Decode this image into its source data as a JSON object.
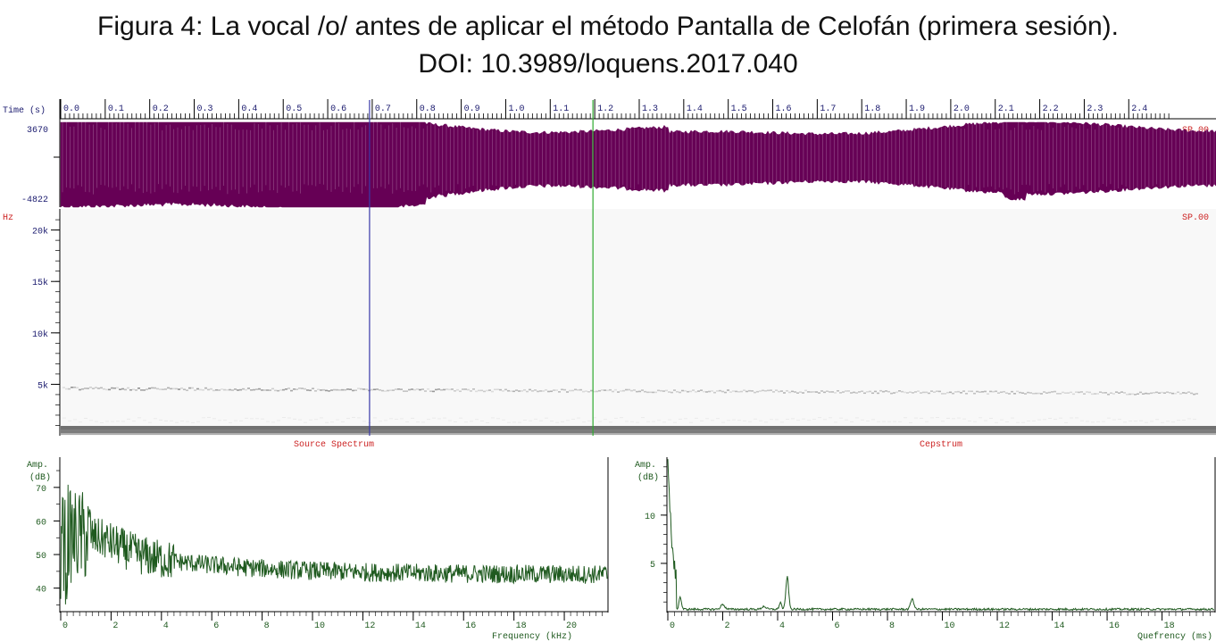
{
  "figure": {
    "title_line1": "Figura 4: La vocal /o/ antes de aplicar el método Pantalla de Celofán (primera sesión).",
    "title_line2": "DOI: 10.3989/loquens.2017.040"
  },
  "colors": {
    "waveform": "#660055",
    "spectrum": "#1f5a1f",
    "axis_label": "#1a1a6e",
    "channel_label": "#cc2222",
    "cursor_left": "#3a3aa8",
    "cursor_right": "#2eaa2e"
  },
  "time_axis": {
    "label": "Time (s)",
    "ticks": [
      "0.0",
      "0.1",
      "0.2",
      "0.3",
      "0.4",
      "0.5",
      "0.6",
      "0.7",
      "0.8",
      "0.9",
      "1.0",
      "1.1",
      "1.2",
      "1.3",
      "1.4",
      "1.5",
      "1.6",
      "1.7",
      "1.8",
      "1.9",
      "2.0",
      "2.1",
      "2.2",
      "2.3",
      "2.4"
    ],
    "max_s": 2.5
  },
  "waveform_panel": {
    "y_max_label": "3670",
    "y_min_label": "-4822",
    "channel": "SP.00"
  },
  "spectrogram_panel": {
    "unit": "Hz",
    "channel": "SP.00",
    "ticks": [
      "20k",
      "15k",
      "10k",
      "5k"
    ],
    "tick_values_hz": [
      20000,
      15000,
      10000,
      5000
    ],
    "max_hz": 22050
  },
  "cursors": {
    "left_time_s": 0.694,
    "right_time_s": 1.196
  },
  "source_spectrum": {
    "title": "Source Spectrum",
    "ylabel_line1": "Amp.",
    "ylabel_line2": "(dB)",
    "y_ticks": [
      "70",
      "60",
      "50",
      "40"
    ],
    "y_tick_values": [
      70,
      60,
      50,
      40
    ],
    "x_ticks": [
      "0",
      "2",
      "4",
      "6",
      "8",
      "10",
      "12",
      "14",
      "16",
      "18",
      "20"
    ],
    "xlabel": "Frequency (kHz)",
    "x_range_khz": [
      0,
      21.7
    ],
    "y_range_db": [
      33,
      79
    ]
  },
  "cepstrum": {
    "title": "Cepstrum",
    "ylabel_line1": "Amp.",
    "ylabel_line2": "(dB)",
    "y_ticks": [
      "10",
      "5"
    ],
    "y_tick_values": [
      10,
      5
    ],
    "x_ticks": [
      "0",
      "2",
      "4",
      "6",
      "8",
      "10",
      "12",
      "14",
      "16",
      "18"
    ],
    "xlabel": "Quefrency (ms)",
    "x_range_ms": [
      0,
      19.9
    ],
    "y_range": [
      0,
      16
    ]
  }
}
